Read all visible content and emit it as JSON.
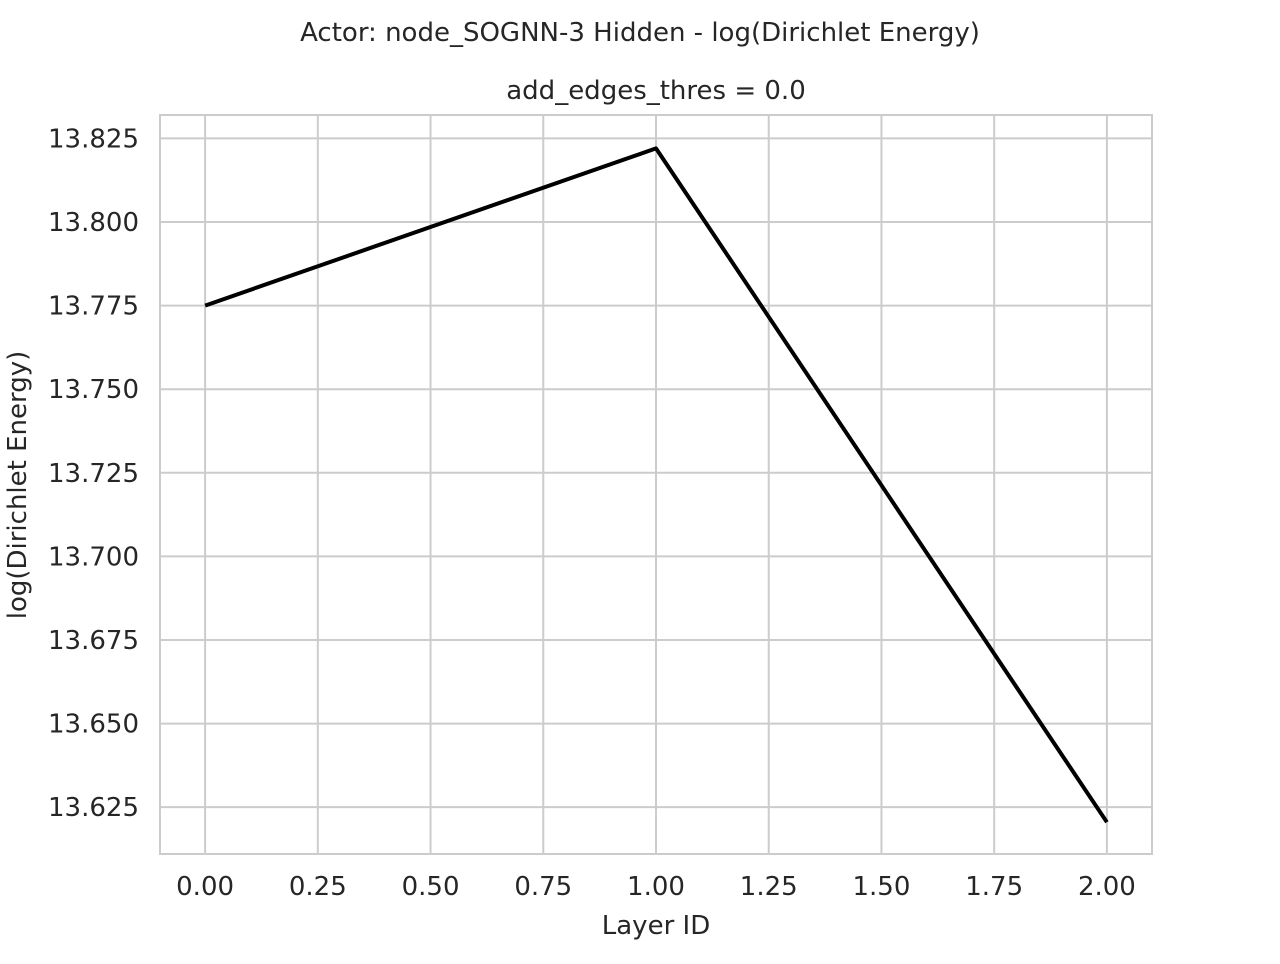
{
  "figure": {
    "suptitle": "Actor: node_SOGNN-3 Hidden - log(Dirichlet Energy)"
  },
  "chart_data": {
    "type": "line",
    "title": "add_edges_thres = 0.0",
    "xlabel": "Layer ID",
    "ylabel": "log(Dirichlet Energy)",
    "xlim": [
      -0.1,
      2.1
    ],
    "ylim": [
      13.611,
      13.832
    ],
    "xticks": [
      0.0,
      0.25,
      0.5,
      0.75,
      1.0,
      1.25,
      1.5,
      1.75,
      2.0
    ],
    "xtick_labels": [
      "0.00",
      "0.25",
      "0.50",
      "0.75",
      "1.00",
      "1.25",
      "1.50",
      "1.75",
      "2.00"
    ],
    "yticks": [
      13.625,
      13.65,
      13.675,
      13.7,
      13.725,
      13.75,
      13.775,
      13.8,
      13.825
    ],
    "ytick_labels": [
      "13.625",
      "13.650",
      "13.675",
      "13.700",
      "13.725",
      "13.750",
      "13.775",
      "13.800",
      "13.825"
    ],
    "grid": true,
    "legend": false,
    "series": [
      {
        "color": "#000000",
        "x": [
          0,
          1,
          2
        ],
        "values": [
          13.775,
          13.822,
          13.6205
        ]
      }
    ]
  }
}
